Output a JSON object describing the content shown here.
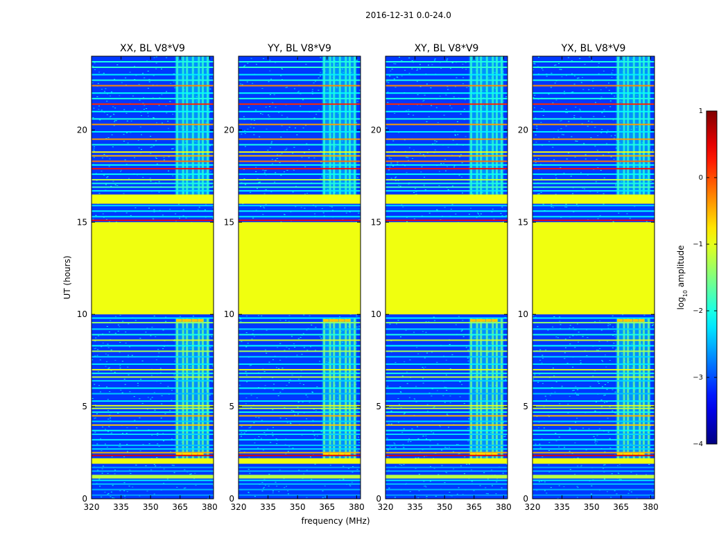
{
  "chart_data": {
    "type": "heatmap",
    "title": "2016-12-31 0.0-24.0",
    "xlabel": "frequency (MHz)",
    "ylabel": "UT (hours)",
    "xlim": [
      320,
      382
    ],
    "ylim": [
      0,
      24
    ],
    "x_ticks": [
      320,
      335,
      350,
      365,
      380
    ],
    "y_ticks": [
      0,
      5,
      10,
      15,
      20
    ],
    "panels": [
      {
        "title": "XX, BL V8*V9",
        "show_ylabel": true,
        "show_xlabel": false,
        "bottom_row_hot": false
      },
      {
        "title": "YY, BL V8*V9",
        "show_ylabel": false,
        "show_xlabel": true,
        "bottom_row_hot": false
      },
      {
        "title": "XY, BL V8*V9",
        "show_ylabel": false,
        "show_xlabel": false,
        "bottom_row_hot": false
      },
      {
        "title": "YX, BL V8*V9",
        "show_ylabel": false,
        "show_xlabel": false,
        "bottom_row_hot": true
      }
    ],
    "colorbar": {
      "label_prefix": "log",
      "label_sub": "10",
      "label_suffix": " amplitude",
      "range": [
        -4,
        1
      ],
      "ticks": [
        {
          "value": 1,
          "label": "1"
        },
        {
          "value": 0,
          "label": "0"
        },
        {
          "value": -1,
          "label": "−1"
        },
        {
          "value": -2,
          "label": "−2"
        },
        {
          "value": -3,
          "label": "−3"
        },
        {
          "value": -4,
          "label": "−4"
        }
      ],
      "colormap": "jet"
    },
    "background_level": -3.1,
    "flagged_blocks": [
      {
        "t0": 10.0,
        "t1": 15.0,
        "level": -0.95
      },
      {
        "t0": 16.0,
        "t1": 16.5,
        "level": -0.95
      },
      {
        "t0": 1.9,
        "t1": 2.2,
        "level": -0.95
      },
      {
        "t0": 1.1,
        "t1": 1.3,
        "level": -1.2
      }
    ],
    "rfi_channels_mhz": [
      363,
      366,
      368,
      371,
      374,
      376,
      378.5
    ],
    "rfi_band_mhz": [
      362.5,
      380
    ],
    "horizontal_lines": [
      {
        "t": 0.2,
        "level": -2.6
      },
      {
        "t": 0.5,
        "level": -2.5
      },
      {
        "t": 0.8,
        "level": -2.4
      },
      {
        "t": 1.0,
        "level": -2.2
      },
      {
        "t": 1.5,
        "level": -2.5
      },
      {
        "t": 1.7,
        "level": -2.6
      },
      {
        "t": 2.35,
        "level": 0.5
      },
      {
        "t": 2.5,
        "level": -0.5
      },
      {
        "t": 2.7,
        "level": -2.3
      },
      {
        "t": 2.9,
        "level": -2.4
      },
      {
        "t": 3.2,
        "level": -2.2
      },
      {
        "t": 3.5,
        "level": -2.3
      },
      {
        "t": 3.7,
        "level": -2.1
      },
      {
        "t": 4.0,
        "level": -0.6
      },
      {
        "t": 4.2,
        "level": -2.3
      },
      {
        "t": 4.5,
        "level": -0.5
      },
      {
        "t": 4.7,
        "level": -2.0
      },
      {
        "t": 4.9,
        "level": -1.2
      },
      {
        "t": 5.05,
        "level": -1.0
      },
      {
        "t": 5.3,
        "level": -2.2
      },
      {
        "t": 5.7,
        "level": -2.4
      },
      {
        "t": 6.0,
        "level": -2.1
      },
      {
        "t": 6.4,
        "level": -2.3
      },
      {
        "t": 6.6,
        "level": -1.2
      },
      {
        "t": 6.8,
        "level": -2.0
      },
      {
        "t": 7.0,
        "level": -1.0
      },
      {
        "t": 7.3,
        "level": -2.2
      },
      {
        "t": 7.7,
        "level": -2.3
      },
      {
        "t": 8.0,
        "level": -1.3
      },
      {
        "t": 8.3,
        "level": -2.1
      },
      {
        "t": 8.6,
        "level": -1.1
      },
      {
        "t": 8.9,
        "level": -2.0
      },
      {
        "t": 9.2,
        "level": -2.3
      },
      {
        "t": 9.55,
        "level": -1.4
      },
      {
        "t": 9.8,
        "level": -2.2
      },
      {
        "t": 15.1,
        "level": 0.4
      },
      {
        "t": 15.3,
        "level": -2.2
      },
      {
        "t": 15.6,
        "level": -2.1
      },
      {
        "t": 15.9,
        "level": -2.3
      },
      {
        "t": 16.7,
        "level": -2.2
      },
      {
        "t": 16.9,
        "level": -1.8
      },
      {
        "t": 17.1,
        "level": -2.0
      },
      {
        "t": 17.3,
        "level": -1.2
      },
      {
        "t": 17.6,
        "level": -2.1
      },
      {
        "t": 17.9,
        "level": 0.3
      },
      {
        "t": 18.1,
        "level": -2.1
      },
      {
        "t": 18.3,
        "level": -0.2
      },
      {
        "t": 18.6,
        "level": -0.5
      },
      {
        "t": 18.8,
        "level": -0.9
      },
      {
        "t": 19.2,
        "level": -2.0
      },
      {
        "t": 19.5,
        "level": -0.4
      },
      {
        "t": 19.9,
        "level": -2.2
      },
      {
        "t": 20.3,
        "level": -0.4
      },
      {
        "t": 20.6,
        "level": -2.0
      },
      {
        "t": 21.0,
        "level": -2.1
      },
      {
        "t": 21.4,
        "level": 0.2
      },
      {
        "t": 21.7,
        "level": -2.0
      },
      {
        "t": 22.0,
        "level": -2.1
      },
      {
        "t": 22.4,
        "level": -0.3
      },
      {
        "t": 22.7,
        "level": -2.0
      },
      {
        "t": 23.0,
        "level": -2.2
      },
      {
        "t": 23.4,
        "level": -1.9
      },
      {
        "t": 23.7,
        "level": -2.0
      }
    ]
  }
}
